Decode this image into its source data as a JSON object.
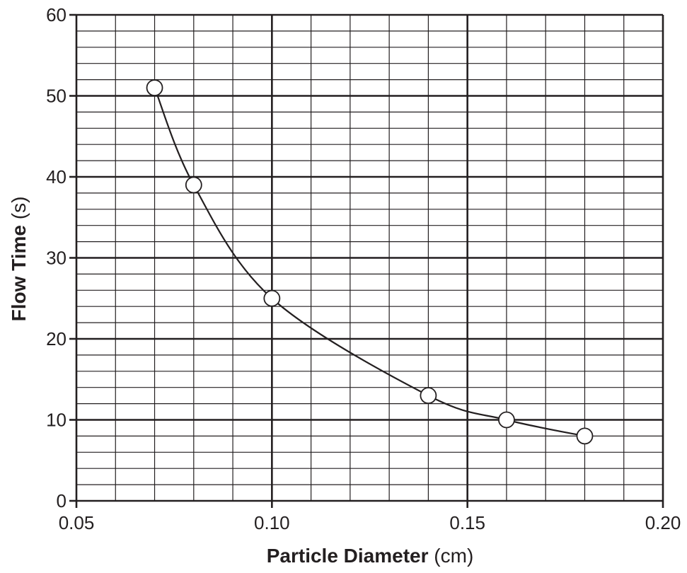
{
  "chart_data": {
    "type": "scatter",
    "title": "",
    "xlabel_bold": "Particle Diameter",
    "xlabel_unit": "(cm)",
    "ylabel_bold": "Flow Time",
    "ylabel_unit": "(s)",
    "xlim": [
      0.05,
      0.2
    ],
    "ylim": [
      0,
      60
    ],
    "x_ticks": [
      "0.05",
      "0.10",
      "0.15",
      "0.20"
    ],
    "y_ticks": [
      "0",
      "10",
      "20",
      "30",
      "40",
      "50",
      "60"
    ],
    "grid": true,
    "series": [
      {
        "x": [
          0.07,
          0.08,
          0.1,
          0.14,
          0.16,
          0.18
        ],
        "y": [
          51,
          39,
          25,
          13,
          10,
          8
        ]
      }
    ],
    "trend_curve": true,
    "colors": {
      "ink": "#231f20",
      "background": "#ffffff",
      "marker_fill": "#ffffff"
    }
  }
}
